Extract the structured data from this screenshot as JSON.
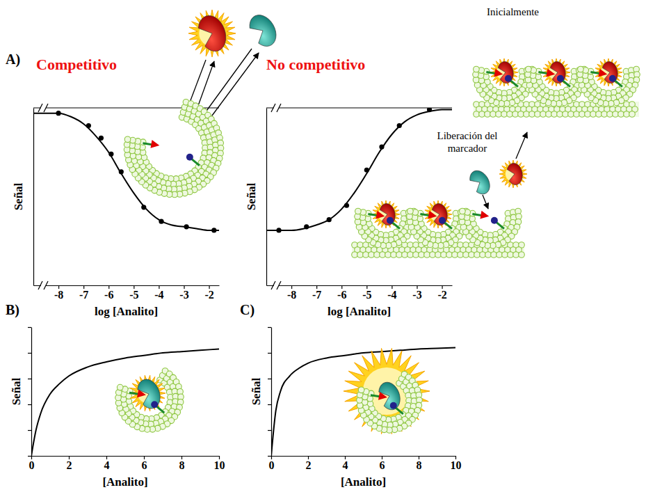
{
  "chart_data": [
    {
      "type": "line",
      "panel_label": "A)",
      "title": "Competitivo",
      "x_label": "log [Analito]",
      "y_label": "Señal",
      "xlim": [
        -9,
        -1.6
      ],
      "xticks": [
        -8,
        -7,
        -6,
        -5,
        -4,
        -3,
        -2
      ],
      "ylim": [
        0,
        1
      ],
      "tick_labels": "x",
      "series": [
        {
          "type": "line",
          "line_style": "solid",
          "color": "#000000",
          "x": [
            -9,
            -8,
            -7.5,
            -7,
            -6.5,
            -6,
            -5.5,
            -5,
            -4.5,
            -4,
            -3.5,
            -3,
            -2.5,
            -2,
            -1.6
          ],
          "values": [
            0.97,
            0.97,
            0.95,
            0.91,
            0.84,
            0.75,
            0.63,
            0.52,
            0.43,
            0.37,
            0.34,
            0.33,
            0.32,
            0.31,
            0.31
          ]
        },
        {
          "type": "scatter",
          "marker": "circle",
          "color": "#000000",
          "x": [
            -8,
            -6.8,
            -6.3,
            -5.9,
            -5.5,
            -4.6,
            -3.9,
            -2.9,
            -1.8
          ],
          "values": [
            0.97,
            0.9,
            0.83,
            0.74,
            0.64,
            0.44,
            0.36,
            0.33,
            0.31
          ]
        }
      ]
    },
    {
      "type": "line",
      "title": "No competitivo",
      "x_label": "log [Analito]",
      "y_label": "Señal",
      "xlim": [
        -9,
        -1.6
      ],
      "xticks": [
        -8,
        -7,
        -6,
        -5,
        -4,
        -3,
        -2
      ],
      "ylim": [
        0,
        1
      ],
      "tick_labels": "x",
      "annotations": [
        "Inicialmente",
        "Liberación del marcador"
      ],
      "series": [
        {
          "type": "line",
          "line_style": "solid",
          "color": "#000000",
          "x": [
            -9,
            -8,
            -7.5,
            -7,
            -6.5,
            -6,
            -5.5,
            -5,
            -4.5,
            -4,
            -3.5,
            -3,
            -2.5,
            -2,
            -1.6
          ],
          "values": [
            0.31,
            0.31,
            0.32,
            0.34,
            0.37,
            0.43,
            0.52,
            0.63,
            0.75,
            0.85,
            0.92,
            0.96,
            0.98,
            0.99,
            0.99
          ]
        },
        {
          "type": "scatter",
          "marker": "circle",
          "color": "#000000",
          "x": [
            -8.5,
            -7.4,
            -6.5,
            -5.8,
            -5,
            -4.4,
            -3.7,
            -2.5
          ],
          "values": [
            0.31,
            0.33,
            0.37,
            0.45,
            0.65,
            0.78,
            0.9,
            0.99
          ]
        }
      ]
    },
    {
      "type": "line",
      "panel_label": "B)",
      "x_label": "[Analito]",
      "y_label": "Señal",
      "xlim": [
        0,
        10
      ],
      "xticks": [
        0,
        2,
        4,
        6,
        8,
        10
      ],
      "ylim": [
        0,
        1
      ],
      "yticks": [
        0,
        0.2,
        0.4,
        0.6,
        0.8,
        1
      ],
      "tick_labels": "x",
      "series": [
        {
          "type": "line",
          "line_style": "solid",
          "color": "#000000",
          "x": [
            0,
            0.25,
            0.5,
            1,
            1.5,
            2,
            3,
            4,
            5,
            6,
            7,
            8,
            9,
            10
          ],
          "values": [
            0,
            0.2,
            0.33,
            0.48,
            0.56,
            0.62,
            0.69,
            0.73,
            0.76,
            0.78,
            0.8,
            0.81,
            0.82,
            0.83
          ]
        }
      ]
    },
    {
      "type": "line",
      "panel_label": "C)",
      "x_label": "[Analito]",
      "y_label": "Señal",
      "xlim": [
        0,
        10
      ],
      "xticks": [
        0,
        2,
        4,
        6,
        8,
        10
      ],
      "ylim": [
        0,
        1
      ],
      "yticks": [
        0,
        0.2,
        0.4,
        0.6,
        0.8,
        1
      ],
      "tick_labels": "x",
      "series": [
        {
          "type": "line",
          "line_style": "solid",
          "color": "#000000",
          "x": [
            0,
            0.25,
            0.5,
            1,
            1.5,
            2,
            3,
            4,
            5,
            6,
            7,
            8,
            9,
            10
          ],
          "values": [
            0,
            0.35,
            0.5,
            0.62,
            0.68,
            0.72,
            0.76,
            0.78,
            0.8,
            0.81,
            0.82,
            0.83,
            0.835,
            0.84
          ]
        }
      ]
    }
  ]
}
